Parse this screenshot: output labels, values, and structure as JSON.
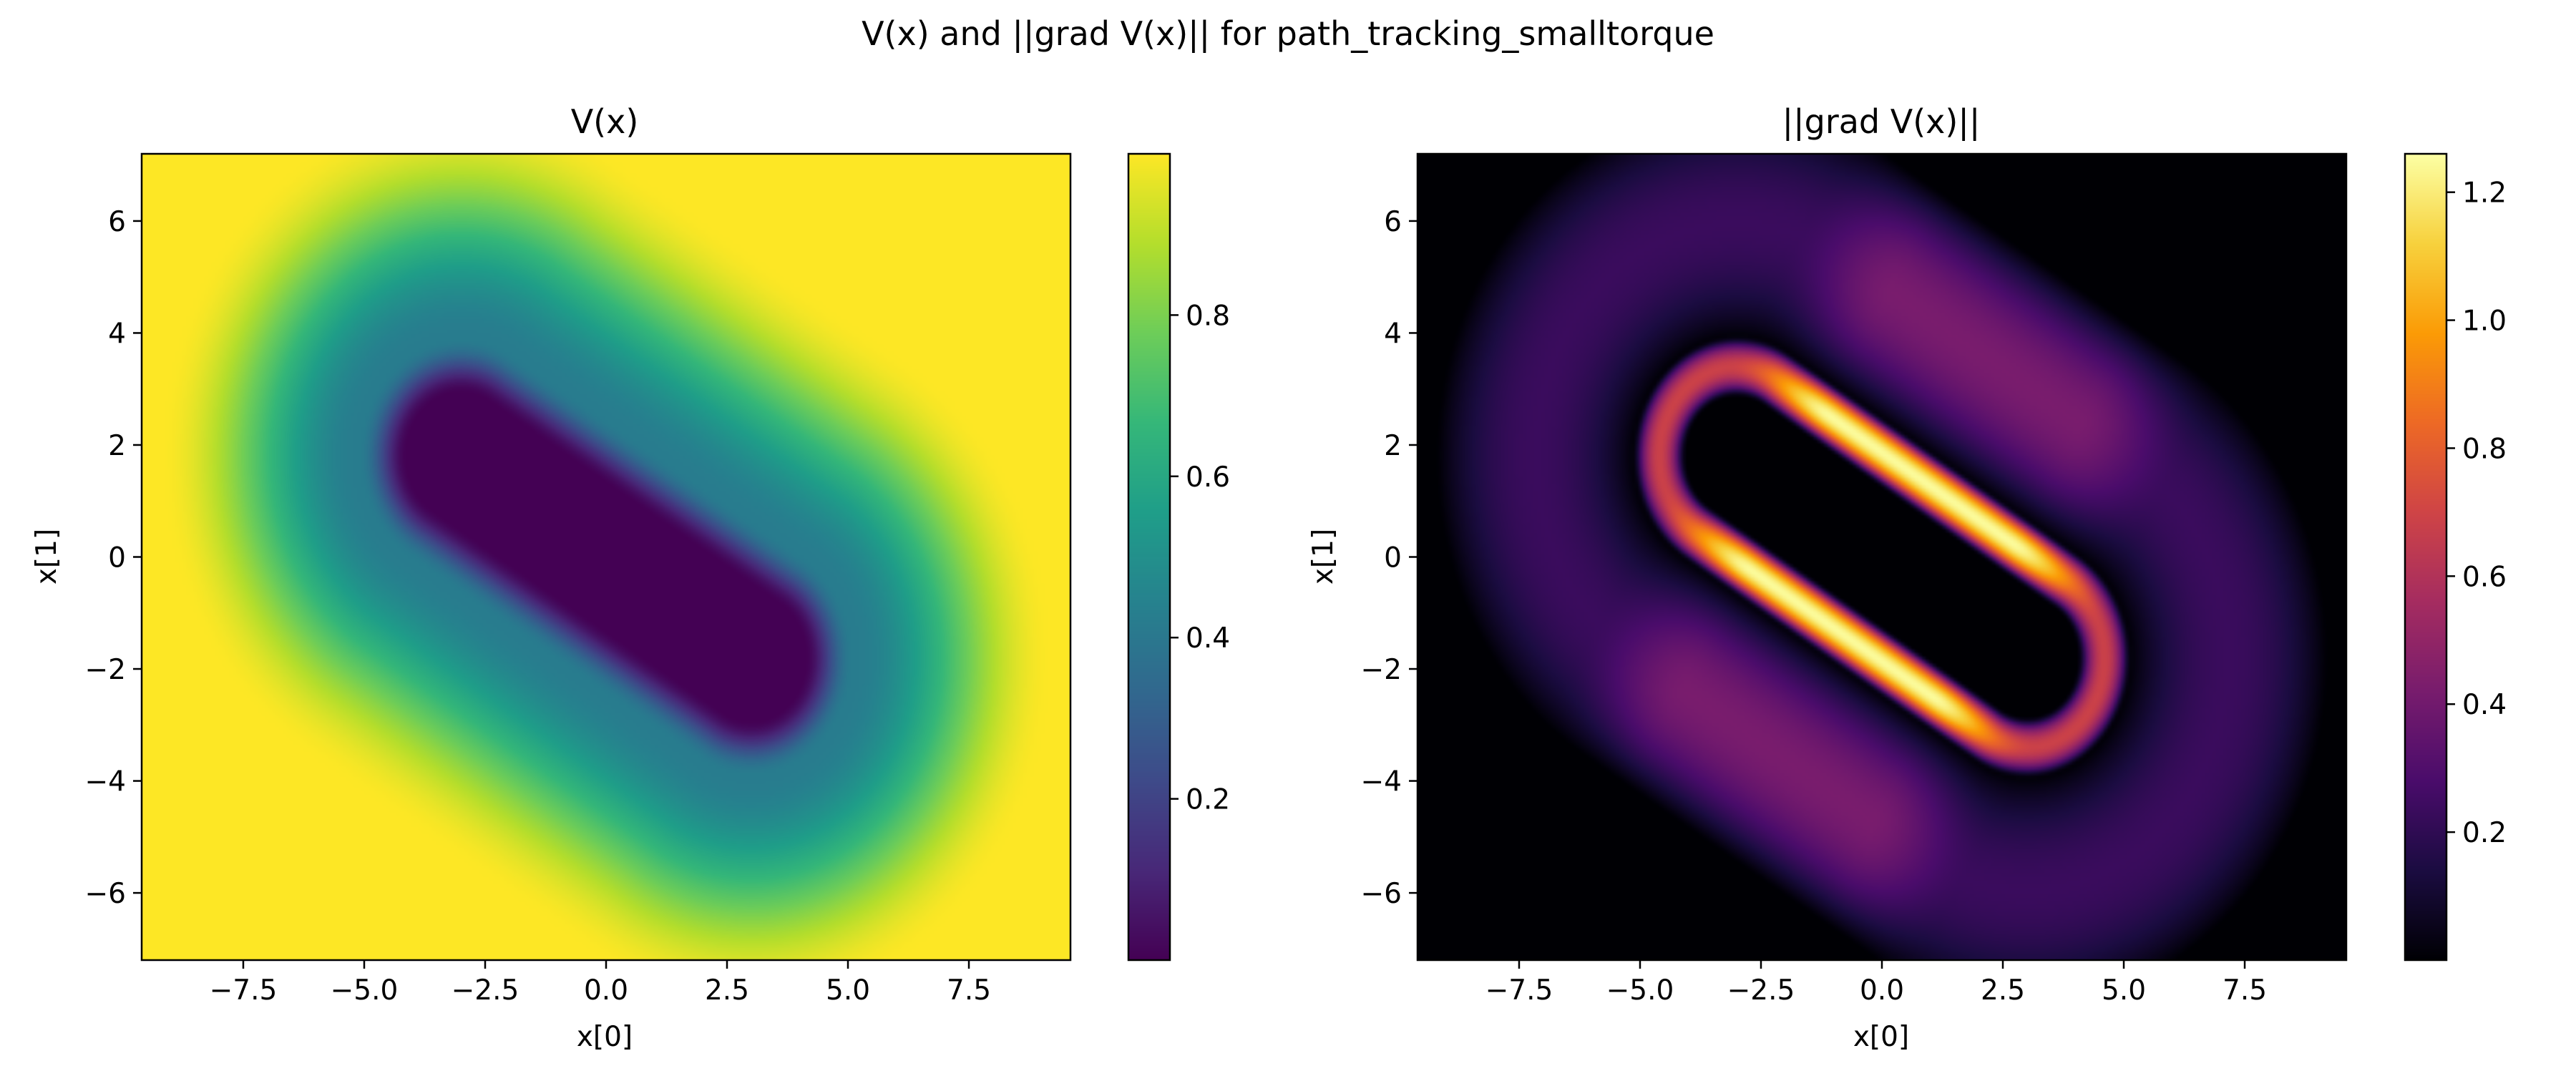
{
  "suptitle": "V(x) and ||grad V(x)|| for path_tracking_smalltorque",
  "chart_data": [
    {
      "type": "heatmap",
      "title": "V(x)",
      "xlabel": "x[0]",
      "ylabel": "x[1]",
      "xlim": [
        -9.6,
        9.6
      ],
      "ylim": [
        -7.2,
        7.2
      ],
      "xticks": [
        -7.5,
        -5.0,
        -2.5,
        0.0,
        2.5,
        5.0,
        7.5
      ],
      "xtick_labels": [
        "−7.5",
        "−5.0",
        "−2.5",
        "0.0",
        "2.5",
        "5.0",
        "7.5"
      ],
      "yticks": [
        -6,
        -4,
        -2,
        0,
        2,
        4,
        6
      ],
      "ytick_labels": [
        "−6",
        "−4",
        "−2",
        "0",
        "2",
        "4",
        "6"
      ],
      "colormap": "viridis",
      "color_range": [
        0.0,
        1.0
      ],
      "colorbar_ticks": [
        0.2,
        0.4,
        0.6,
        0.8
      ],
      "colorbar_tick_labels": [
        "0.2",
        "0.4",
        "0.6",
        "0.8"
      ],
      "field": {
        "description": "value function: low plateau inside tilted capsule region, ~1 outside",
        "capsule_center": [
          0.0,
          0.0
        ],
        "capsule_axis_angle_deg": -31,
        "capsule_half_length": 3.5,
        "capsule_radius": 2.0,
        "inner_value": 0.0,
        "outer_value": 1.0
      }
    },
    {
      "type": "heatmap",
      "title": "||grad V(x)||",
      "xlabel": "x[0]",
      "ylabel": "x[1]",
      "xlim": [
        -9.6,
        9.6
      ],
      "ylim": [
        -7.2,
        7.2
      ],
      "xticks": [
        -7.5,
        -5.0,
        -2.5,
        0.0,
        2.5,
        5.0,
        7.5
      ],
      "xtick_labels": [
        "−7.5",
        "−5.0",
        "−2.5",
        "0.0",
        "2.5",
        "5.0",
        "7.5"
      ],
      "yticks": [
        -6,
        -4,
        -2,
        0,
        2,
        4,
        6
      ],
      "ytick_labels": [
        "−6",
        "−4",
        "−2",
        "0",
        "2",
        "4",
        "6"
      ],
      "colormap": "inferno",
      "color_range": [
        0.0,
        1.26
      ],
      "colorbar_ticks": [
        0.2,
        0.4,
        0.6,
        0.8,
        1.0,
        1.2
      ],
      "colorbar_tick_labels": [
        "0.2",
        "0.4",
        "0.6",
        "0.8",
        "1.0",
        "1.2"
      ],
      "field": {
        "description": "gradient magnitude: ring around capsule, peaks ~1.2 along the long edges",
        "peak_value": 1.25
      }
    }
  ]
}
